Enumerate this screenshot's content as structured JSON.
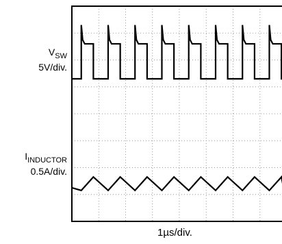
{
  "chart_data": {
    "type": "line",
    "title": "",
    "xlabel": "1µs/div.",
    "ylabel": "",
    "grid": true,
    "divisions": {
      "x": 8,
      "y": 8
    },
    "series": [
      {
        "name": "V",
        "name_subscript": "SW",
        "scale": "5V/div.",
        "shape": "square wave with spike on rising edge",
        "period_div": 1.0,
        "high_fraction": 0.45,
        "low_level_div": 5.3,
        "high_level_div": 6.6,
        "spike_level_div": 7.3,
        "first_rising_edge_div": 0.35
      },
      {
        "name": "I",
        "name_subscript": "INDUCTOR",
        "scale": "0.5A/div.",
        "shape": "triangle wave",
        "period_div": 1.0,
        "rise_fraction": 0.45,
        "min_level_div": 1.15,
        "max_level_div": 1.65,
        "first_rise_start_div": 0.35
      }
    ]
  },
  "labels": {
    "vsw_main": "V",
    "vsw_sub": "SW",
    "vsw_scale": "5V/div.",
    "iind_main": "I",
    "iind_sub": "INDUCTOR",
    "iind_scale": "0.5A/div.",
    "x_scale": "1µs/div."
  }
}
